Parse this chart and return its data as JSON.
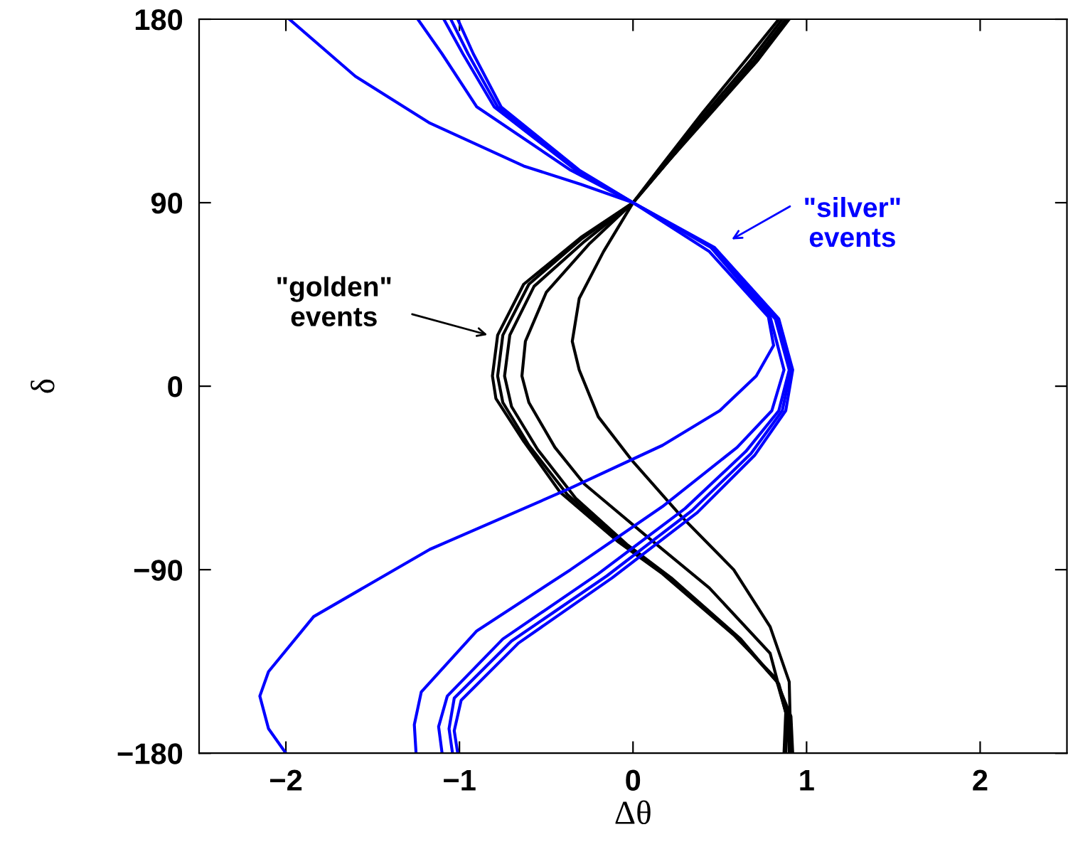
{
  "chart_data": {
    "type": "line",
    "xlabel": "Δθ",
    "ylabel": "δ",
    "xlim": [
      -2.5,
      2.5
    ],
    "ylim": [
      -180,
      180
    ],
    "xticks": [
      {
        "value": -2,
        "label": "−2"
      },
      {
        "value": -1,
        "label": "−1"
      },
      0,
      1,
      2
    ],
    "yticks": [
      {
        "value": -180,
        "label": "−180"
      },
      {
        "value": -90,
        "label": "−90"
      },
      0,
      90,
      180
    ],
    "grid": false,
    "marker": "none",
    "line_style": "solid",
    "annotations": [
      "\"golden\"\nevents",
      "\"silver\"\nevents"
    ],
    "series": [
      {
        "color": "#000000",
        "x": [
          0.89,
          0.71,
          0.44,
          0.2,
          0,
          -0.3,
          -0.63,
          -0.78,
          -0.81,
          -0.79,
          -0.63,
          -0.42,
          -0.09,
          0.17,
          0.58,
          0.82,
          0.91,
          0.92
        ],
        "values": [
          180,
          159,
          134,
          110,
          90,
          73,
          50,
          25,
          5,
          -6,
          -27,
          -52,
          -76,
          -92,
          -122,
          -143,
          -162,
          -180
        ]
      },
      {
        "color": "#000000",
        "x": [
          0.9,
          0.72,
          0.45,
          0.2,
          0,
          -0.3,
          -0.6,
          -0.75,
          -0.78,
          -0.75,
          -0.6,
          -0.38,
          -0.06,
          0.2,
          0.6,
          0.83,
          0.89,
          0.88
        ],
        "values": [
          180,
          160,
          134,
          110,
          90,
          72,
          50,
          25,
          5,
          -8,
          -29,
          -53,
          -77,
          -93,
          -123,
          -145,
          -163,
          -180
        ]
      },
      {
        "color": "#000000",
        "x": [
          0.88,
          0.7,
          0.44,
          0.2,
          0,
          -0.28,
          -0.57,
          -0.71,
          -0.74,
          -0.7,
          -0.55,
          -0.33,
          -0.03,
          0.22,
          0.62,
          0.84,
          0.9,
          0.9
        ],
        "values": [
          180,
          160,
          134,
          110,
          90,
          71,
          49,
          25,
          5,
          -10,
          -31,
          -55,
          -78,
          -94,
          -124,
          -146,
          -164,
          -180
        ]
      },
      {
        "color": "#000000",
        "x": [
          0.86,
          0.68,
          0.42,
          0.19,
          0,
          -0.25,
          -0.5,
          -0.62,
          -0.64,
          -0.6,
          -0.45,
          -0.28,
          0.07,
          0.44,
          0.79,
          0.88,
          0.87
        ],
        "values": [
          180,
          160,
          134,
          110,
          90,
          70,
          46,
          22,
          5,
          -8,
          -30,
          -48,
          -73,
          -99,
          -131,
          -160,
          -180
        ]
      },
      {
        "color": "#000000",
        "x": [
          0.84,
          0.65,
          0.4,
          0.18,
          0,
          -0.17,
          -0.31,
          -0.35,
          -0.31,
          -0.2,
          -0.01,
          0.28,
          0.58,
          0.79,
          0.9,
          0.91
        ],
        "values": [
          180,
          160,
          134,
          110,
          90,
          66,
          43,
          22,
          8,
          -15,
          -36,
          -64,
          -90,
          -118,
          -145,
          -180
        ]
      },
      {
        "color": "#0000ff",
        "x": [
          -1.98,
          -1.6,
          -1.17,
          -0.63,
          -0.3,
          0,
          0.44,
          0.78,
          0.81,
          0.71,
          0.5,
          0.17,
          -0.36,
          -1.17,
          -1.84,
          -2.1,
          -2.15,
          -2.1,
          -2.0
        ],
        "values": [
          180,
          152,
          129,
          108,
          99,
          90,
          66,
          34,
          20,
          5,
          -12,
          -29,
          -50,
          -80,
          -113,
          -140,
          -152,
          -168,
          -180
        ]
      },
      {
        "color": "#0000ff",
        "x": [
          -1.24,
          -1.1,
          -0.9,
          -0.36,
          0,
          0.44,
          0.79,
          0.87,
          0.8,
          0.6,
          0.17,
          -0.36,
          -0.9,
          -1.22,
          -1.26,
          -1.25
        ],
        "values": [
          180,
          163,
          137,
          106,
          90,
          69,
          34,
          8,
          -12,
          -30,
          -59,
          -90,
          -120,
          -150,
          -166,
          -180
        ]
      },
      {
        "color": "#0000ff",
        "x": [
          -1.09,
          -0.98,
          -0.8,
          -0.33,
          0,
          0.45,
          0.82,
          0.9,
          0.84,
          0.65,
          0.3,
          -0.2,
          -0.75,
          -1.07,
          -1.12,
          -1.1
        ],
        "values": [
          180,
          163,
          137,
          106,
          90,
          68,
          33,
          8,
          -12,
          -32,
          -60,
          -92,
          -124,
          -152,
          -167,
          -180
        ]
      },
      {
        "color": "#0000ff",
        "x": [
          -1.05,
          -0.95,
          -0.78,
          -0.32,
          0,
          0.46,
          0.83,
          0.91,
          0.86,
          0.68,
          0.34,
          -0.15,
          -0.7,
          -1.03,
          -1.06,
          -1.04
        ],
        "values": [
          180,
          163,
          137,
          106,
          90,
          68,
          33,
          8,
          -12,
          -33,
          -61,
          -93,
          -125,
          -153,
          -168,
          -180
        ]
      },
      {
        "color": "#0000ff",
        "x": [
          -1.01,
          -0.92,
          -0.76,
          -0.31,
          0,
          0.47,
          0.84,
          0.92,
          0.88,
          0.7,
          0.37,
          -0.12,
          -0.66,
          -0.99,
          -1.03,
          -1.01
        ],
        "values": [
          180,
          163,
          137,
          106,
          90,
          68,
          33,
          8,
          -12,
          -34,
          -62,
          -94,
          -126,
          -154,
          -169,
          -180
        ]
      }
    ]
  }
}
